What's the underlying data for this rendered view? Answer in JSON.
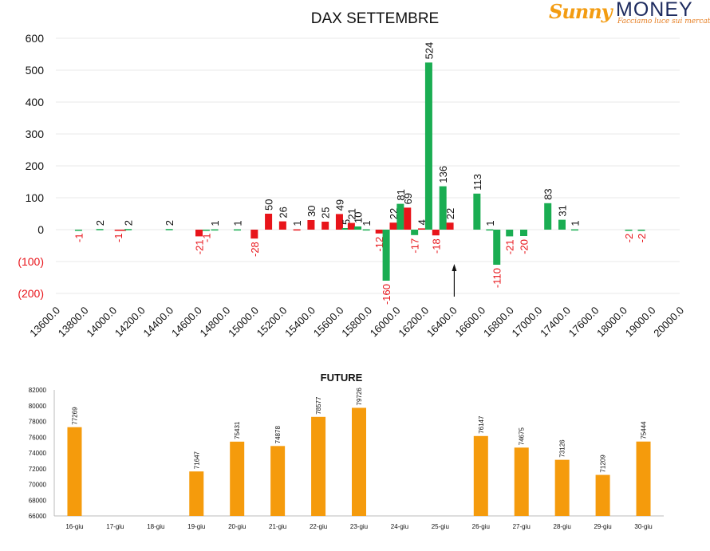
{
  "logo": {
    "brand_left": "Sunny",
    "brand_right": "MONEY",
    "tagline": "Facciamo luce sui mercati"
  },
  "colors": {
    "positive": "#1aad52",
    "negative": "#e8141a",
    "future_bar": "#f59b0c",
    "text": "#000000"
  },
  "chart_data": [
    {
      "type": "bar",
      "title": "DAX SETTEMBRE",
      "ylim": [
        -200,
        600
      ],
      "yticks": [
        {
          "value": 600,
          "label": "600"
        },
        {
          "value": 500,
          "label": "500"
        },
        {
          "value": 400,
          "label": "400"
        },
        {
          "value": 300,
          "label": "300"
        },
        {
          "value": 200,
          "label": "200"
        },
        {
          "value": 100,
          "label": "100"
        },
        {
          "value": 0,
          "label": "0"
        },
        {
          "value": -100,
          "label": "(100)"
        },
        {
          "value": -200,
          "label": "(200)"
        }
      ],
      "grid": true,
      "categories": [
        "13600.0",
        "13800.0",
        "14000.0",
        "14200.0",
        "14400.0",
        "14600.0",
        "14800.0",
        "15000.0",
        "15200.0",
        "15400.0",
        "15600.0",
        "15800.0",
        "16000.0",
        "16200.0",
        "16400.0",
        "16600.0",
        "16800.0",
        "17000.0",
        "17400.0",
        "17600.0",
        "18000.0",
        "19000.0",
        "20000.0"
      ],
      "bars": [
        {
          "pos": 0.8,
          "value": -1,
          "color": "positive",
          "label": "-1"
        },
        {
          "pos": 1.55,
          "value": 2,
          "color": "positive",
          "label": "2"
        },
        {
          "pos": 2.2,
          "value": -1,
          "color": "negative",
          "label": "-1"
        },
        {
          "pos": 2.35,
          "value": -1,
          "color": "negative"
        },
        {
          "pos": 2.55,
          "value": 2,
          "color": "positive",
          "label": "2"
        },
        {
          "pos": 4.0,
          "value": 2,
          "color": "positive",
          "label": "2"
        },
        {
          "pos": 5.05,
          "value": -21,
          "color": "negative",
          "label": "-21"
        },
        {
          "pos": 5.3,
          "value": -1,
          "color": "positive",
          "label": "-1"
        },
        {
          "pos": 5.6,
          "value": 1,
          "color": "positive",
          "label": "1"
        },
        {
          "pos": 6.4,
          "value": 1,
          "color": "positive",
          "label": "1"
        },
        {
          "pos": 7.0,
          "value": -28,
          "color": "negative",
          "label": "-28"
        },
        {
          "pos": 7.5,
          "value": 50,
          "color": "negative",
          "label": "50"
        },
        {
          "pos": 8.0,
          "value": 26,
          "color": "negative",
          "label": "26"
        },
        {
          "pos": 8.5,
          "value": 1,
          "color": "negative",
          "label": "1"
        },
        {
          "pos": 9.0,
          "value": 30,
          "color": "negative",
          "label": "30"
        },
        {
          "pos": 9.5,
          "value": 25,
          "color": "negative",
          "label": "25"
        },
        {
          "pos": 10.0,
          "value": 49,
          "color": "negative",
          "label": "49"
        },
        {
          "pos": 10.22,
          "value": 5,
          "color": "positive",
          "label": "5"
        },
        {
          "pos": 10.42,
          "value": 21,
          "color": "negative",
          "label": "21"
        },
        {
          "pos": 10.65,
          "value": 10,
          "color": "positive",
          "label": "10"
        },
        {
          "pos": 10.95,
          "value": 1,
          "color": "positive",
          "label": "1"
        },
        {
          "pos": 11.4,
          "value": -12,
          "color": "negative",
          "label": "-12"
        },
        {
          "pos": 11.65,
          "value": -160,
          "color": "positive",
          "label": "-160"
        },
        {
          "pos": 11.9,
          "value": 22,
          "color": "negative",
          "label": "22"
        },
        {
          "pos": 12.15,
          "value": 81,
          "color": "positive",
          "label": "81"
        },
        {
          "pos": 12.4,
          "value": 69,
          "color": "negative",
          "label": "69"
        },
        {
          "pos": 12.65,
          "value": -17,
          "color": "positive",
          "label": "-17"
        },
        {
          "pos": 12.9,
          "value": 4,
          "color": "negative",
          "label": "4"
        },
        {
          "pos": 13.15,
          "value": 524,
          "color": "positive",
          "label": "524"
        },
        {
          "pos": 13.4,
          "value": -18,
          "color": "negative",
          "label": "-18"
        },
        {
          "pos": 13.65,
          "value": 136,
          "color": "positive",
          "label": "136"
        },
        {
          "pos": 13.9,
          "value": 22,
          "color": "negative",
          "label": "22"
        },
        {
          "pos": 14.85,
          "value": 113,
          "color": "positive",
          "label": "113"
        },
        {
          "pos": 15.3,
          "value": 1,
          "color": "positive",
          "label": "1"
        },
        {
          "pos": 15.55,
          "value": -110,
          "color": "positive",
          "label": "-110"
        },
        {
          "pos": 16.0,
          "value": -21,
          "color": "positive",
          "label": "-21"
        },
        {
          "pos": 16.5,
          "value": -20,
          "color": "positive",
          "label": "-20"
        },
        {
          "pos": 17.35,
          "value": 83,
          "color": "positive",
          "label": "83"
        },
        {
          "pos": 17.85,
          "value": 31,
          "color": "positive",
          "label": "31"
        },
        {
          "pos": 18.3,
          "value": 1,
          "color": "positive",
          "label": "1"
        },
        {
          "pos": 20.2,
          "value": -2,
          "color": "positive",
          "label": "-2"
        },
        {
          "pos": 20.65,
          "value": -2,
          "color": "positive",
          "label": "-2"
        }
      ]
    },
    {
      "type": "bar",
      "title": "FUTURE",
      "ylim": [
        66000,
        82000
      ],
      "yticks": [
        66000,
        68000,
        70000,
        72000,
        74000,
        76000,
        78000,
        80000,
        82000
      ],
      "categories": [
        "16-giu",
        "17-giu",
        "18-giu",
        "19-giu",
        "20-giu",
        "21-giu",
        "22-giu",
        "23-giu",
        "24-giu",
        "25-giu",
        "26-giu",
        "27-giu",
        "28-giu",
        "29-giu",
        "30-giu"
      ],
      "values": [
        77269,
        null,
        null,
        71647,
        75431,
        74878,
        78577,
        79726,
        null,
        null,
        76147,
        74675,
        73126,
        71209,
        75444
      ]
    }
  ]
}
